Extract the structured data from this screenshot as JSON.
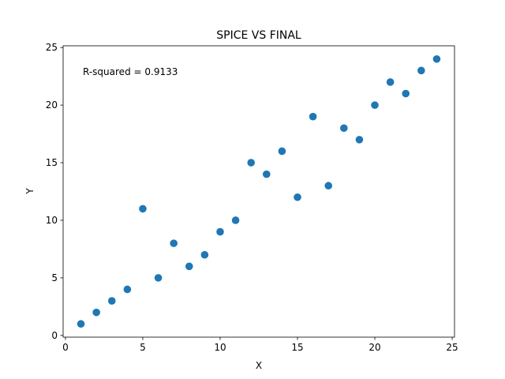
{
  "chart_data": {
    "type": "scatter",
    "title": "SPICE VS FINAL",
    "xlabel": "X",
    "ylabel": "Y",
    "xlim": [
      -0.15,
      25.15
    ],
    "ylim": [
      -0.15,
      25.15
    ],
    "xticks": [
      0,
      5,
      10,
      15,
      20,
      25
    ],
    "yticks": [
      0,
      5,
      10,
      15,
      20,
      25
    ],
    "grid": false,
    "annotation": "R-squared = 0.9133",
    "marker_color": "#1f77b4",
    "points": [
      {
        "x": 1,
        "y": 1
      },
      {
        "x": 2,
        "y": 2
      },
      {
        "x": 3,
        "y": 3
      },
      {
        "x": 4,
        "y": 4
      },
      {
        "x": 5,
        "y": 11
      },
      {
        "x": 6,
        "y": 5
      },
      {
        "x": 7,
        "y": 8
      },
      {
        "x": 8,
        "y": 6
      },
      {
        "x": 9,
        "y": 7
      },
      {
        "x": 10,
        "y": 9
      },
      {
        "x": 11,
        "y": 10
      },
      {
        "x": 12,
        "y": 15
      },
      {
        "x": 13,
        "y": 14
      },
      {
        "x": 14,
        "y": 16
      },
      {
        "x": 15,
        "y": 12
      },
      {
        "x": 16,
        "y": 19
      },
      {
        "x": 17,
        "y": 13
      },
      {
        "x": 18,
        "y": 18
      },
      {
        "x": 19,
        "y": 17
      },
      {
        "x": 20,
        "y": 20
      },
      {
        "x": 21,
        "y": 22
      },
      {
        "x": 22,
        "y": 21
      },
      {
        "x": 23,
        "y": 23
      },
      {
        "x": 24,
        "y": 24
      }
    ]
  }
}
